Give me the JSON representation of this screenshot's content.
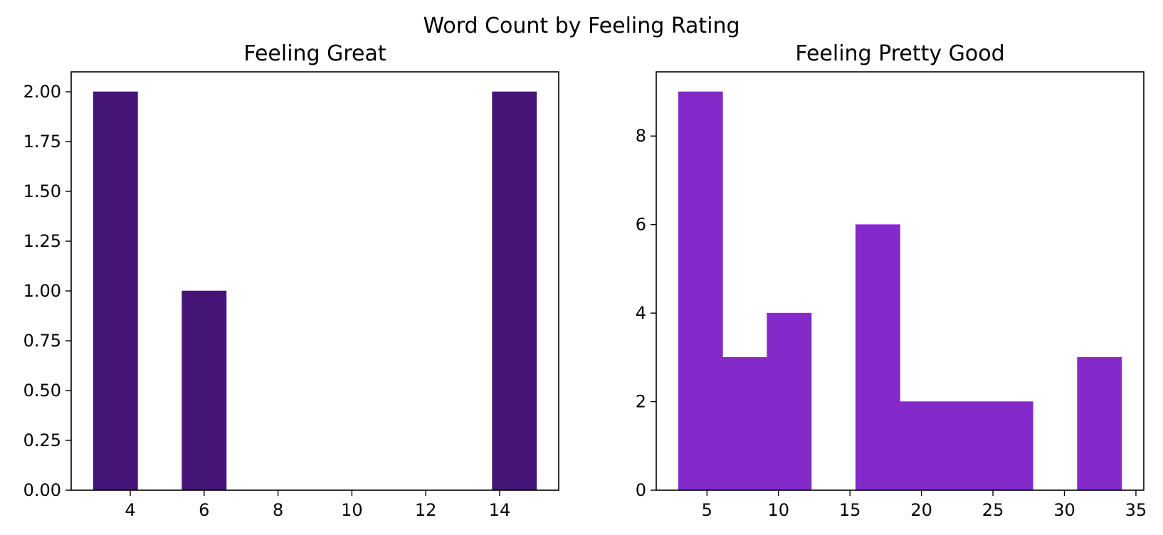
{
  "figure": {
    "suptitle": "Word Count by Feeling Rating"
  },
  "chart_data": [
    {
      "type": "bar",
      "subtype": "histogram",
      "title": "Feeling Great",
      "xlabel": "",
      "ylabel": "",
      "color": "#441577",
      "bin_edges": [
        3.0,
        4.2,
        5.4,
        6.6,
        7.8,
        9.0,
        10.2,
        11.4,
        12.6,
        13.8,
        15.0
      ],
      "values": [
        2,
        0,
        1,
        0,
        0,
        0,
        0,
        0,
        0,
        2
      ],
      "xlim": [
        2.4,
        15.6
      ],
      "ylim": [
        0,
        2.1
      ],
      "xticks": [
        4,
        6,
        8,
        10,
        12,
        14
      ],
      "xtick_labels": [
        "4",
        "6",
        "8",
        "10",
        "12",
        "14"
      ],
      "yticks": [
        0,
        0.25,
        0.5,
        0.75,
        1.0,
        1.25,
        1.5,
        1.75,
        2.0
      ],
      "ytick_labels": [
        "0.00",
        "0.25",
        "0.50",
        "0.75",
        "1.00",
        "1.25",
        "1.50",
        "1.75",
        "2.00"
      ],
      "grid": false,
      "legend": "none"
    },
    {
      "type": "bar",
      "subtype": "histogram",
      "title": "Feeling Pretty Good",
      "xlabel": "",
      "ylabel": "",
      "color": "#8429CA",
      "bin_edges": [
        3.0,
        6.1,
        9.2,
        12.3,
        15.4,
        18.5,
        21.6,
        24.7,
        27.8,
        30.9,
        34.0
      ],
      "values": [
        9,
        3,
        4,
        0,
        6,
        2,
        2,
        2,
        0,
        3
      ],
      "xlim": [
        1.45,
        35.55
      ],
      "ylim": [
        0,
        9.45
      ],
      "xticks": [
        5,
        10,
        15,
        20,
        25,
        30,
        35
      ],
      "xtick_labels": [
        "5",
        "10",
        "15",
        "20",
        "25",
        "30",
        "35"
      ],
      "yticks": [
        0,
        2,
        4,
        6,
        8
      ],
      "ytick_labels": [
        "0",
        "2",
        "4",
        "6",
        "8"
      ],
      "grid": false,
      "legend": "none"
    }
  ]
}
